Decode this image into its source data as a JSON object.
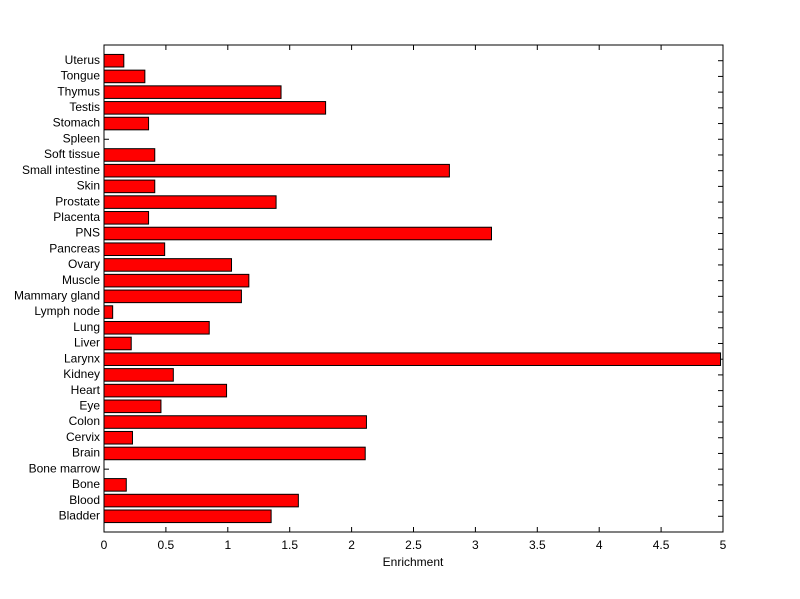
{
  "chart_data": {
    "type": "barh",
    "xlabel": "Enrichment",
    "categories": [
      "Bladder",
      "Blood",
      "Bone",
      "Bone marrow",
      "Brain",
      "Cervix",
      "Colon",
      "Eye",
      "Heart",
      "Kidney",
      "Larynx",
      "Liver",
      "Lung",
      "Lymph node",
      "Mammary gland",
      "Muscle",
      "Ovary",
      "Pancreas",
      "PNS",
      "Placenta",
      "Prostate",
      "Skin",
      "Small intestine",
      "Soft tissue",
      "Spleen",
      "Stomach",
      "Testis",
      "Thymus",
      "Tongue",
      "Uterus"
    ],
    "values": [
      1.35,
      1.57,
      0.18,
      0,
      2.11,
      0.23,
      2.12,
      0.46,
      0.99,
      0.56,
      4.98,
      0.22,
      0.85,
      0.07,
      1.11,
      1.17,
      1.03,
      0.49,
      3.13,
      0.36,
      1.39,
      0.41,
      2.79,
      0.41,
      0,
      0.36,
      1.79,
      1.43,
      0.33,
      0.16
    ],
    "color": "#ff0000",
    "xlim": [
      0,
      5
    ],
    "xticks": [
      0,
      0.5,
      1,
      1.5,
      2,
      2.5,
      3,
      3.5,
      4,
      4.5,
      5
    ],
    "grid": false
  }
}
